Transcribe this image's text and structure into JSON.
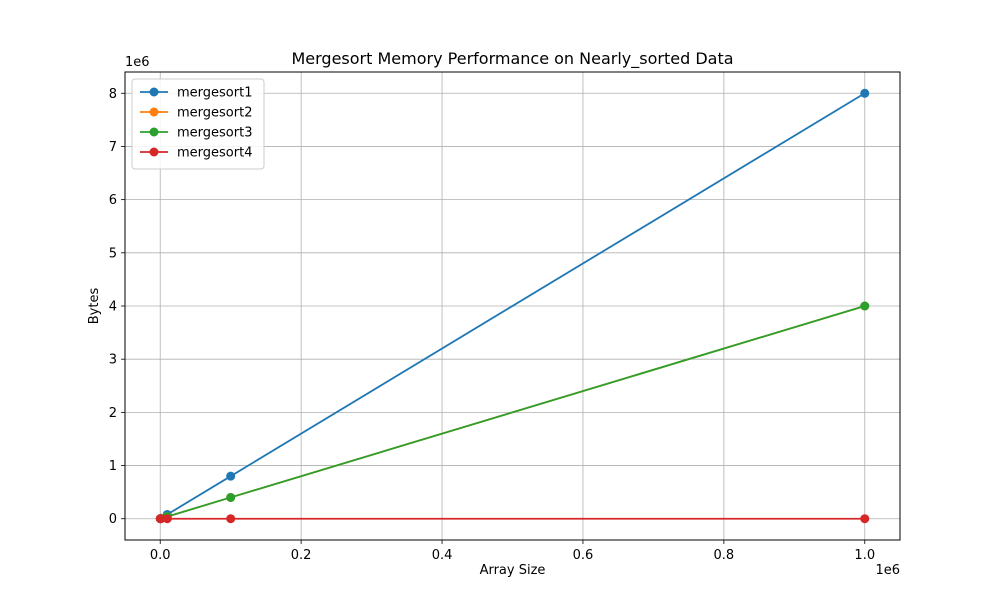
{
  "chart_data": {
    "type": "line",
    "title": "Mergesort Memory Performance on Nearly_sorted Data",
    "xlabel": "Array Size",
    "ylabel": "Bytes",
    "x_offset_label": "1e6",
    "y_offset_label": "1e6",
    "xlim": [
      -0.05,
      1.05
    ],
    "ylim": [
      -0.4,
      8.4
    ],
    "x_ticks": [
      0.0,
      0.2,
      0.4,
      0.6,
      0.8,
      1.0
    ],
    "x_tick_labels": [
      "0.0",
      "0.2",
      "0.4",
      "0.6",
      "0.8",
      "1.0"
    ],
    "y_ticks": [
      0,
      1,
      2,
      3,
      4,
      5,
      6,
      7,
      8
    ],
    "y_tick_labels": [
      "0",
      "1",
      "2",
      "3",
      "4",
      "5",
      "6",
      "7",
      "8"
    ],
    "grid": true,
    "legend_position": "upper-left",
    "x": [
      0.0001,
      0.001,
      0.01,
      0.1,
      1.0
    ],
    "series": [
      {
        "name": "mergesort1",
        "color": "#1f77b4",
        "values": [
          0.0008,
          0.008,
          0.08,
          0.8,
          8.0
        ]
      },
      {
        "name": "mergesort2",
        "color": "#ff7f0e",
        "values": [
          0.0004,
          0.004,
          0.04,
          0.4,
          4.0
        ]
      },
      {
        "name": "mergesort3",
        "color": "#2ca02c",
        "values": [
          0.0004,
          0.004,
          0.04,
          0.4,
          4.0
        ]
      },
      {
        "name": "mergesort4",
        "color": "#d62728",
        "values": [
          0.0,
          0.0,
          0.0,
          0.0,
          0.0
        ]
      }
    ]
  }
}
